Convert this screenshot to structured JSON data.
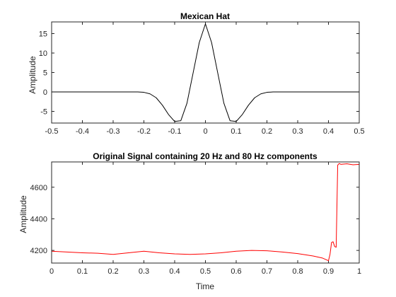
{
  "window": {
    "background": "#ffffff"
  },
  "chart_data": [
    {
      "type": "line",
      "title": "Mexican Hat",
      "xlabel": "",
      "ylabel": "Amplitude",
      "xlim": [
        -0.5,
        0.5
      ],
      "ylim": [
        -8,
        18
      ],
      "xticks": [
        -0.5,
        -0.4,
        -0.3,
        -0.2,
        -0.1,
        0,
        0.1,
        0.2,
        0.3,
        0.4,
        0.5
      ],
      "xtick_labels": [
        "-0.5",
        "-0.4",
        "-0.3",
        "-0.2",
        "-0.1",
        "0",
        "0.1",
        "0.2",
        "0.3",
        "0.4",
        "0.5"
      ],
      "yticks": [
        -5,
        0,
        5,
        10,
        15
      ],
      "ytick_labels": [
        "-5",
        "0",
        "5",
        "10",
        "15"
      ],
      "grid": false,
      "series": [
        {
          "color": "#000000",
          "x": [
            -0.5,
            -0.3,
            -0.22,
            -0.2,
            -0.18,
            -0.16,
            -0.14,
            -0.12,
            -0.1,
            -0.08,
            -0.06,
            -0.04,
            -0.02,
            0,
            0.02,
            0.04,
            0.06,
            0.08,
            0.1,
            0.12,
            0.14,
            0.16,
            0.18,
            0.2,
            0.22,
            0.3,
            0.5
          ],
          "y": [
            0,
            0,
            0,
            -0.1,
            -0.5,
            -1.5,
            -3.4,
            -5.8,
            -7.6,
            -7.4,
            -2.9,
            4.9,
            12.7,
            17.5,
            12.7,
            4.9,
            -2.9,
            -7.4,
            -7.6,
            -5.8,
            -3.4,
            -1.5,
            -0.5,
            -0.1,
            0,
            0,
            0
          ]
        }
      ]
    },
    {
      "type": "line",
      "title": "Original Signal containing 20 Hz and 80 Hz components",
      "xlabel": "Time",
      "ylabel": "Amplitude",
      "xlim": [
        0,
        1
      ],
      "ylim": [
        4120,
        4760
      ],
      "xticks": [
        0,
        0.1,
        0.2,
        0.3,
        0.4,
        0.5,
        0.6,
        0.7,
        0.8,
        0.9,
        1
      ],
      "xtick_labels": [
        "0",
        "0.1",
        "0.2",
        "0.3",
        "0.4",
        "0.5",
        "0.6",
        "0.7",
        "0.8",
        "0.9",
        "1"
      ],
      "yticks": [
        4200,
        4400,
        4600
      ],
      "ytick_labels": [
        "4200",
        "4400",
        "4600"
      ],
      "grid": false,
      "series": [
        {
          "color": "#ff0000",
          "x": [
            0,
            0.05,
            0.1,
            0.15,
            0.2,
            0.25,
            0.3,
            0.35,
            0.4,
            0.45,
            0.5,
            0.55,
            0.6,
            0.65,
            0.7,
            0.75,
            0.8,
            0.85,
            0.88,
            0.9,
            0.905,
            0.91,
            0.915,
            0.92,
            0.925,
            0.93,
            0.935,
            0.94,
            0.96,
            0.98,
            1
          ],
          "y": [
            4195,
            4190,
            4185,
            4182,
            4175,
            4185,
            4195,
            4185,
            4178,
            4175,
            4178,
            4185,
            4195,
            4200,
            4198,
            4190,
            4180,
            4165,
            4152,
            4135,
            4175,
            4250,
            4255,
            4225,
            4220,
            4740,
            4750,
            4745,
            4748,
            4742,
            4745
          ]
        }
      ]
    }
  ]
}
